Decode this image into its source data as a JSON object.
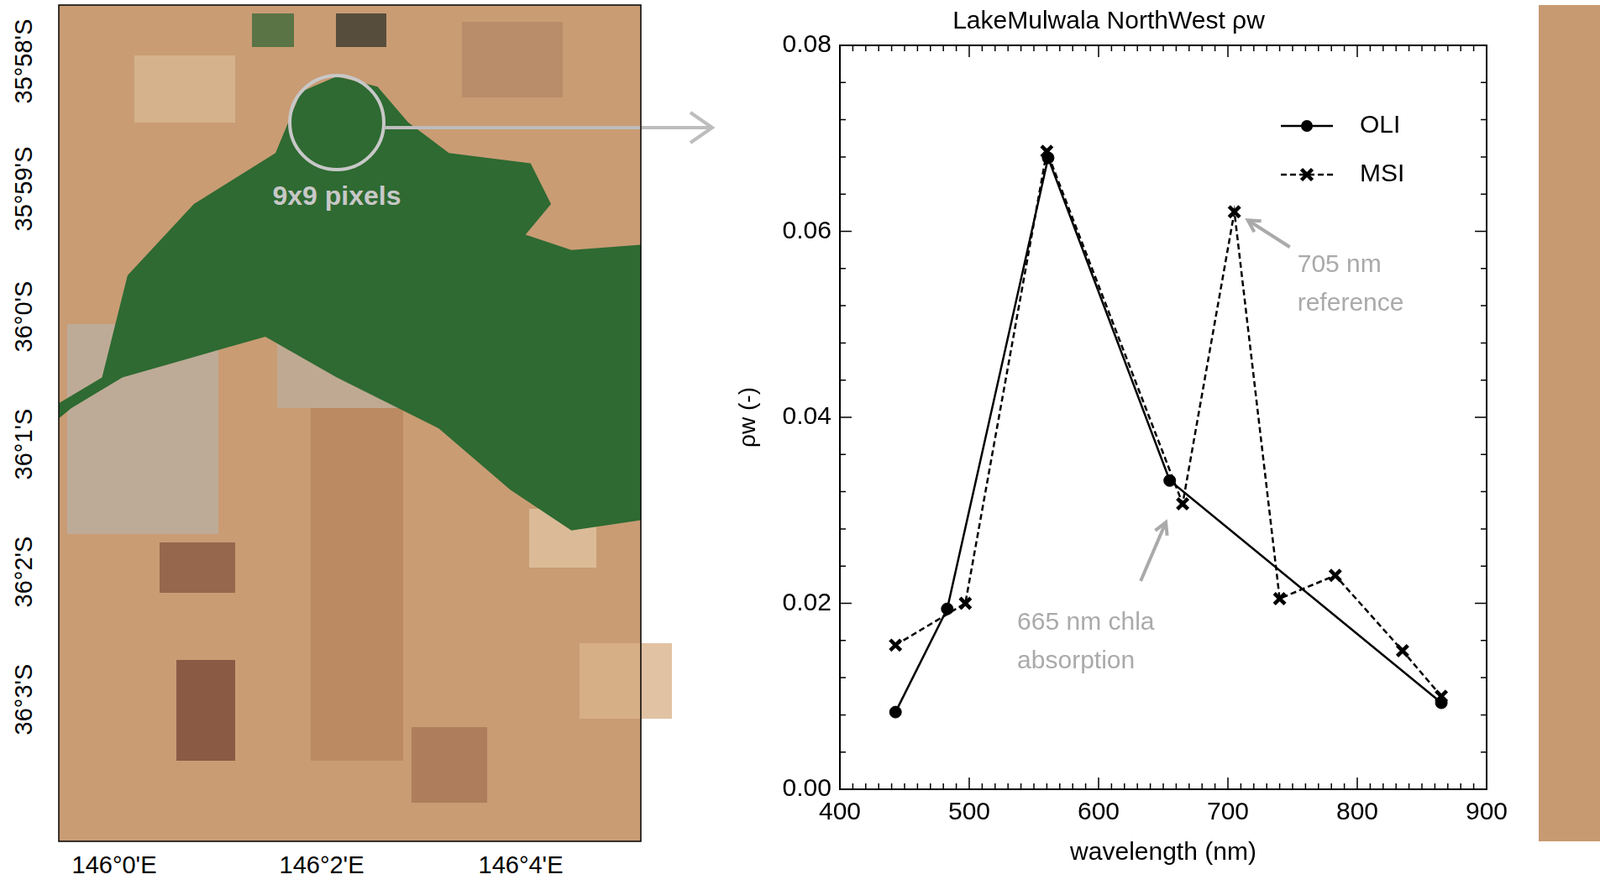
{
  "chart_data": {
    "type": "line",
    "title": "LakeMulwala NorthWest ρw",
    "x_label": "wavelength (nm)",
    "y_label": "ρw (-)",
    "series": [
      {
        "name": "OLI",
        "color": "#000000",
        "marker": "circle",
        "line_style": "solid",
        "x": [
          443,
          483,
          561,
          655,
          865
        ],
        "values": [
          0.0083,
          0.0194,
          0.0679,
          0.0332,
          0.0093
        ]
      },
      {
        "name": "MSI",
        "color": "#000000",
        "marker": "x",
        "line_style": "dashed",
        "x": [
          443,
          497,
          560,
          665,
          705,
          740,
          783,
          835,
          865
        ],
        "values": [
          0.0155,
          0.02,
          0.0686,
          0.0307,
          0.0621,
          0.0205,
          0.023,
          0.0149,
          0.01
        ]
      }
    ],
    "xlim": [
      400,
      900
    ],
    "xticks": [
      400,
      500,
      600,
      700,
      800,
      900
    ],
    "ylim": [
      0,
      0.08
    ],
    "yticks": [
      {
        "value": 0,
        "label": "0.00"
      },
      0.02,
      0.04,
      0.06,
      0.08
    ],
    "grid": false,
    "legend": "upper right",
    "annotations": [
      {
        "text": [
          "705 nm",
          "reference"
        ],
        "x": 705,
        "y": 0.0621,
        "color": "#aaaaaa"
      },
      {
        "text": [
          "665 nm chla",
          "absorption"
        ],
        "x": 665,
        "y": 0.0307,
        "color": "#aaaaaa"
      }
    ]
  },
  "map": {
    "lat_labels": [
      "35°58'S",
      "35°59'S",
      "36°0'S",
      "36°1'S",
      "36°2'S",
      "36°3'S"
    ],
    "lon_labels": [
      "146°0'E",
      "146°2'E",
      "146°4'E"
    ],
    "label": "9x9 pixels"
  }
}
